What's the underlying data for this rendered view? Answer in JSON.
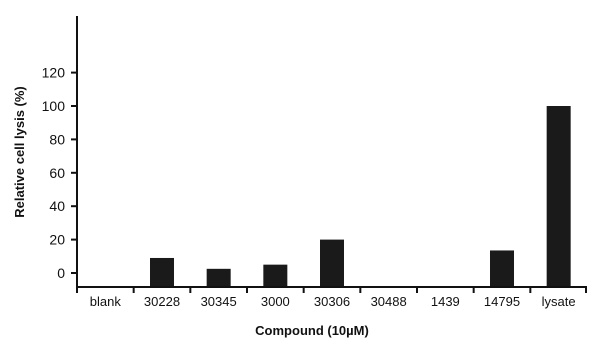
{
  "chart_data": {
    "type": "bar",
    "title": "",
    "xlabel": "Compound (10µM)",
    "ylabel": "Relative cell lysis (%)",
    "ylim": [
      0,
      120
    ],
    "yticks": [
      "0",
      "20",
      "40",
      "60",
      "80",
      "100",
      "120"
    ],
    "categories": [
      "blank",
      "30228",
      "30345",
      "3000",
      "30306",
      "30488",
      "1439",
      "14795",
      "lysate"
    ],
    "values": [
      0,
      9,
      2.5,
      5,
      20,
      0,
      0,
      13.5,
      100
    ],
    "grid": false,
    "legend": "none",
    "bar_color": "#1a1a1a"
  }
}
